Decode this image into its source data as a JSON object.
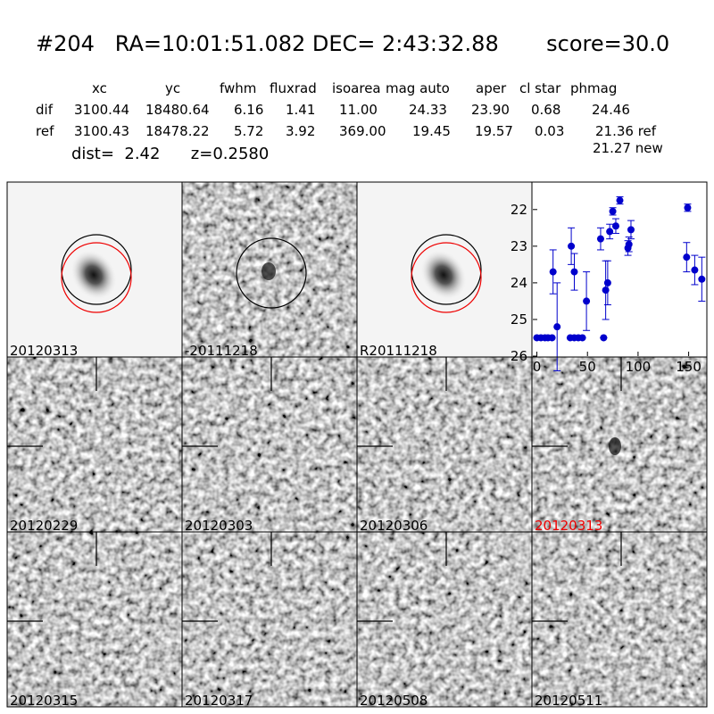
{
  "header": {
    "title": "#204   RA=10:01:51.082 DEC= 2:43:32.88       score=30.0"
  },
  "table": {
    "columns": [
      "xc",
      "yc",
      "fwhm",
      "fluxrad",
      "isoarea",
      "mag auto",
      "aper",
      "cl star",
      "phmag"
    ],
    "rows": [
      {
        "label": "dif",
        "cells": [
          "3100.44",
          "18480.64",
          "6.16",
          "1.41",
          "11.00",
          "24.33",
          "23.90",
          "0.68",
          "24.46"
        ]
      },
      {
        "label": "ref",
        "cells": [
          "3100.43",
          "18478.22",
          "5.72",
          "3.92",
          "369.00",
          "19.45",
          "19.57",
          "0.03",
          "21.36 ref"
        ]
      }
    ],
    "note": "21.27 new"
  },
  "info": {
    "text": "dist=  2.42      z=0.2580"
  },
  "panels": [
    "20120313",
    "-20111218",
    "R20111218",
    null,
    "20120229",
    "20120303",
    "20120306",
    "20120313",
    "20120315",
    "20120317",
    "20120508",
    "20120511"
  ],
  "chart_data": {
    "type": "scatter",
    "color": "#0000cc",
    "x": [
      0,
      4,
      8,
      11,
      15,
      16,
      20,
      33,
      34,
      37,
      37,
      41,
      45,
      49,
      63,
      66,
      68,
      70,
      72,
      75,
      78,
      82,
      90,
      91,
      93,
      149,
      148,
      156,
      163
    ],
    "values": [
      25.5,
      25.5,
      25.5,
      25.5,
      25.5,
      23.7,
      25.2,
      25.5,
      23.0,
      23.7,
      25.5,
      25.5,
      25.5,
      24.5,
      22.8,
      25.5,
      24.2,
      24.0,
      22.6,
      22.05,
      22.45,
      21.75,
      23.05,
      22.95,
      22.55,
      21.95,
      23.3,
      23.65,
      23.9
    ],
    "errors": [
      0,
      0,
      0,
      0,
      0,
      0.6,
      1.2,
      0,
      0.5,
      0.5,
      0,
      0,
      0,
      0.8,
      0.3,
      0,
      0.8,
      0.6,
      0.2,
      0.1,
      0.2,
      0.1,
      0.2,
      0.2,
      0.25,
      0.1,
      0.4,
      0.4,
      0.6
    ],
    "xlim": [
      -4,
      168
    ],
    "ylim": [
      26,
      21.25
    ],
    "xticks": [
      0,
      50,
      100,
      150
    ],
    "yticks": [
      22,
      23,
      24,
      25,
      26
    ]
  }
}
